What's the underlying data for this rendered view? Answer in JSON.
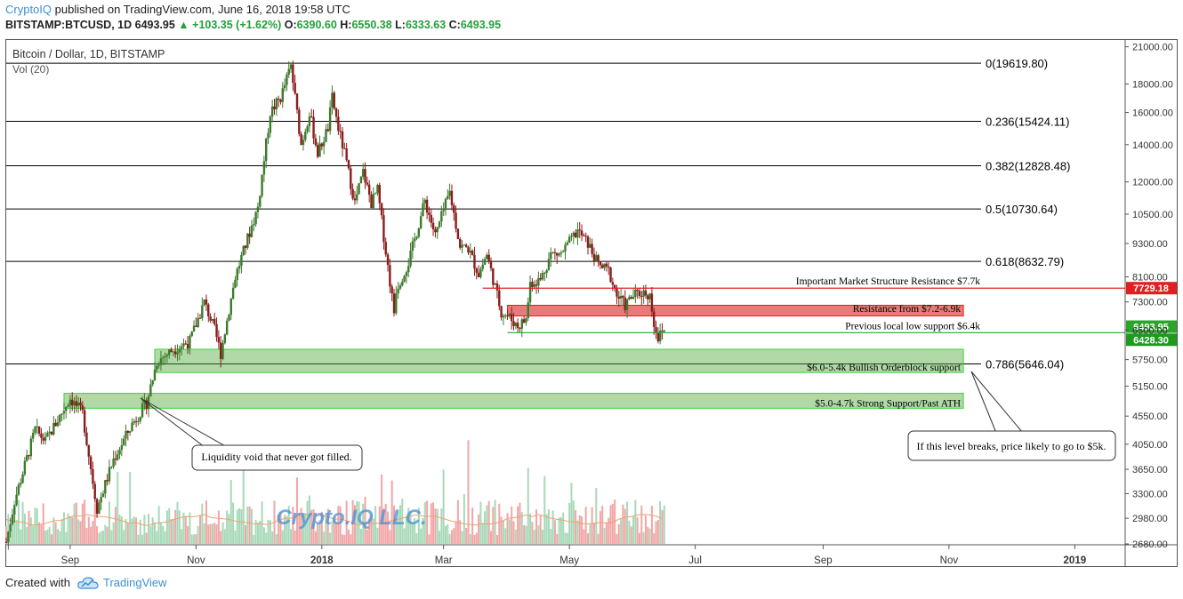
{
  "header": {
    "publisher": "CryptoIQ",
    "published_text": "published on TradingView.com, June 16, 2018 19:58 UTC",
    "symbol": "BITSTAMP:BTCUSD, 1D",
    "last": "6493.95",
    "change": "+103.35 (+1.62%)",
    "o_label": "O:",
    "o": "6390.60",
    "h_label": "H:",
    "h": "6550.38",
    "l_label": "L:",
    "l": "6333.63",
    "c_label": "C:",
    "c": "6493.95"
  },
  "footer": {
    "created_with": "Created with",
    "brand": "TradingView"
  },
  "watermark": "Crypto.IQ LLC.",
  "colors": {
    "up": "#3c7a2c",
    "down": "#8a1c1c",
    "fib": "#000000",
    "resistance": "#e02020",
    "support": "#2aa52a",
    "vol_up": "#a7d9b8",
    "vol_down": "#f2a6a6"
  },
  "chart_data": {
    "type": "candlestick",
    "title": "Bitcoin / Dollar, 1D, BITSTAMP",
    "indicator_label": "Vol (20)",
    "x_tick_labels": [
      "Sep",
      "Nov",
      "2018",
      "Mar",
      "May",
      "Jul",
      "Sep",
      "Nov",
      "2019"
    ],
    "y_tick_labels": [
      "21000.00",
      "18000.00",
      "16000.00",
      "14000.00",
      "12000.00",
      "10500.00",
      "9300.00",
      "8100.00",
      "7300.00",
      "6500.00",
      "5750.00",
      "5150.00",
      "4550.00",
      "4050.00",
      "3650.00",
      "3300.00",
      "2980.00",
      "2680.00"
    ],
    "y_scale": "log",
    "y_range": [
      2680,
      21600
    ],
    "x_range": [
      "2017-08-01",
      "2019-01-25"
    ],
    "price_key_points": [
      [
        "2017-08-01",
        2700
      ],
      [
        "2017-08-05",
        3200
      ],
      [
        "2017-08-15",
        4300
      ],
      [
        "2017-08-20",
        4100
      ],
      [
        "2017-09-01",
        4900
      ],
      [
        "2017-09-07",
        4600
      ],
      [
        "2017-09-14",
        3100
      ],
      [
        "2017-09-22",
        3800
      ],
      [
        "2017-10-01",
        4400
      ],
      [
        "2017-10-08",
        4800
      ],
      [
        "2017-10-13",
        5700
      ],
      [
        "2017-10-21",
        6000
      ],
      [
        "2017-10-29",
        6200
      ],
      [
        "2017-11-05",
        7300
      ],
      [
        "2017-11-10",
        6500
      ],
      [
        "2017-11-13",
        5900
      ],
      [
        "2017-11-20",
        8100
      ],
      [
        "2017-11-28",
        10000
      ],
      [
        "2017-12-01",
        10800
      ],
      [
        "2017-12-07",
        16000
      ],
      [
        "2017-12-12",
        17000
      ],
      [
        "2017-12-17",
        19400
      ],
      [
        "2017-12-22",
        14000
      ],
      [
        "2017-12-26",
        16000
      ],
      [
        "2017-12-30",
        13500
      ],
      [
        "2018-01-04",
        15000
      ],
      [
        "2018-01-06",
        17000
      ],
      [
        "2018-01-09",
        15000
      ],
      [
        "2018-01-12",
        13500
      ],
      [
        "2018-01-17",
        11000
      ],
      [
        "2018-01-21",
        12500
      ],
      [
        "2018-01-25",
        11000
      ],
      [
        "2018-01-28",
        11600
      ],
      [
        "2018-02-01",
        9000
      ],
      [
        "2018-02-05",
        7000
      ],
      [
        "2018-02-06",
        7700
      ],
      [
        "2018-02-12",
        8600
      ],
      [
        "2018-02-20",
        11100
      ],
      [
        "2018-02-25",
        9600
      ],
      [
        "2018-03-04",
        11500
      ],
      [
        "2018-03-09",
        9200
      ],
      [
        "2018-03-13",
        9100
      ],
      [
        "2018-03-18",
        8200
      ],
      [
        "2018-03-22",
        8900
      ],
      [
        "2018-03-29",
        7000
      ],
      [
        "2018-04-01",
        6900
      ],
      [
        "2018-04-06",
        6600
      ],
      [
        "2018-04-10",
        6800
      ],
      [
        "2018-04-12",
        7900
      ],
      [
        "2018-04-17",
        8000
      ],
      [
        "2018-04-22",
        8900
      ],
      [
        "2018-04-27",
        8900
      ],
      [
        "2018-05-05",
        9800
      ],
      [
        "2018-05-10",
        9300
      ],
      [
        "2018-05-15",
        8500
      ],
      [
        "2018-05-20",
        8300
      ],
      [
        "2018-05-24",
        7500
      ],
      [
        "2018-05-28",
        7200
      ],
      [
        "2018-06-01",
        7500
      ],
      [
        "2018-06-06",
        7600
      ],
      [
        "2018-06-09",
        7500
      ],
      [
        "2018-06-11",
        6700
      ],
      [
        "2018-06-13",
        6300
      ],
      [
        "2018-06-16",
        6494
      ]
    ],
    "fib_levels": [
      {
        "label": "0(19619.80)",
        "value": 19619.8
      },
      {
        "label": "0.236(15424.11)",
        "value": 15424.11
      },
      {
        "label": "0.382(12828.48)",
        "value": 12828.48
      },
      {
        "label": "0.5(10730.64)",
        "value": 10730.64
      },
      {
        "label": "0.618(8632.79)",
        "value": 8632.79
      },
      {
        "label": "0.786(5646.04)",
        "value": 5646.04
      }
    ],
    "zones": [
      {
        "label": "Resistance from $7.2-6.9k",
        "from": 6950,
        "to": 7200,
        "start": "2018-04-01",
        "end": "2018-11-08",
        "kind": "resistance"
      },
      {
        "label": "$6.0-5.4k Bullish Orderblock support",
        "from": 5450,
        "to": 6000,
        "start": "2017-10-12",
        "end": "2018-11-08",
        "kind": "support"
      },
      {
        "label": "$5.0-4.7k Strong Support/Past ATH",
        "from": 4700,
        "to": 5000,
        "start": "2017-08-29",
        "end": "2018-11-08",
        "kind": "support"
      }
    ],
    "lines": [
      {
        "label": "Important Market Structure Resistance $7.7k",
        "value": 7729.18,
        "start": "2018-03-20",
        "kind": "resistance"
      },
      {
        "label": "Previous local low support $6.4k",
        "value": 6428.3,
        "start": "2018-04-01",
        "kind": "support"
      }
    ],
    "price_tags": [
      {
        "text": "7729.18",
        "value": 7729.18,
        "kind": "resistance"
      },
      {
        "text": "6493.95",
        "value": 6493.95,
        "kind": "support"
      },
      {
        "text": "6428.30",
        "value": 6428.3,
        "kind": "support"
      }
    ],
    "callouts": [
      {
        "text": "Liquidity void that never got filled."
      },
      {
        "text": "If this level breaks, price likely to go to $5k."
      }
    ]
  }
}
